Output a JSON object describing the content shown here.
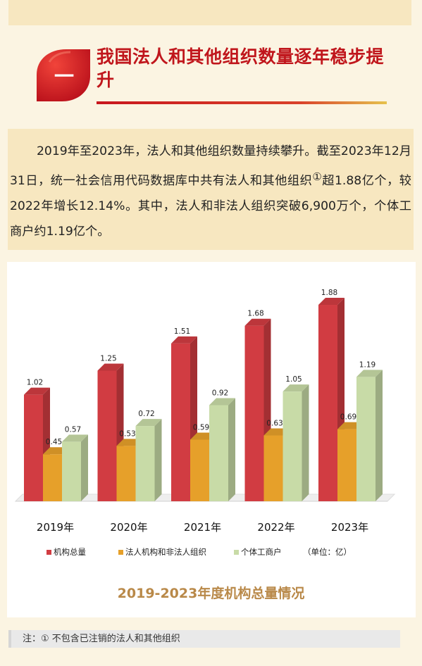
{
  "section": {
    "badge": "一",
    "title": "我国法人和其他组织数量逐年稳步提升"
  },
  "intro": {
    "part1": "2019年至2023年，法人和其他组织数量持续攀升。截至2023年12月31日，统一社会信用代码数据库中共有法人和其他组织",
    "footnote_mark": "①",
    "part2": "超1.88亿个，较2022年增长12.14%。其中，法人和非法人组织突破6,900万个，个体工商户约1.19亿个。"
  },
  "chart_data": {
    "type": "bar",
    "title": "2019-2023年度机构总量情况",
    "categories": [
      "2019年",
      "2020年",
      "2021年",
      "2022年",
      "2023年"
    ],
    "series": [
      {
        "name": "机构总量",
        "color": "#d13c42",
        "values": [
          1.02,
          1.25,
          1.51,
          1.68,
          1.88
        ]
      },
      {
        "name": "法人机构和非法人组织",
        "color": "#e6a02a",
        "values": [
          0.45,
          0.53,
          0.59,
          0.63,
          0.69
        ]
      },
      {
        "name": "个体工商户",
        "color": "#c8dba7",
        "values": [
          0.57,
          0.72,
          0.92,
          1.05,
          1.19
        ]
      }
    ],
    "unit_note": "（单位：亿）",
    "ylim": [
      0,
      2.0
    ],
    "grid": false,
    "legend_position": "bottom"
  },
  "note": "注：①  不包含已注销的法人和其他组织"
}
